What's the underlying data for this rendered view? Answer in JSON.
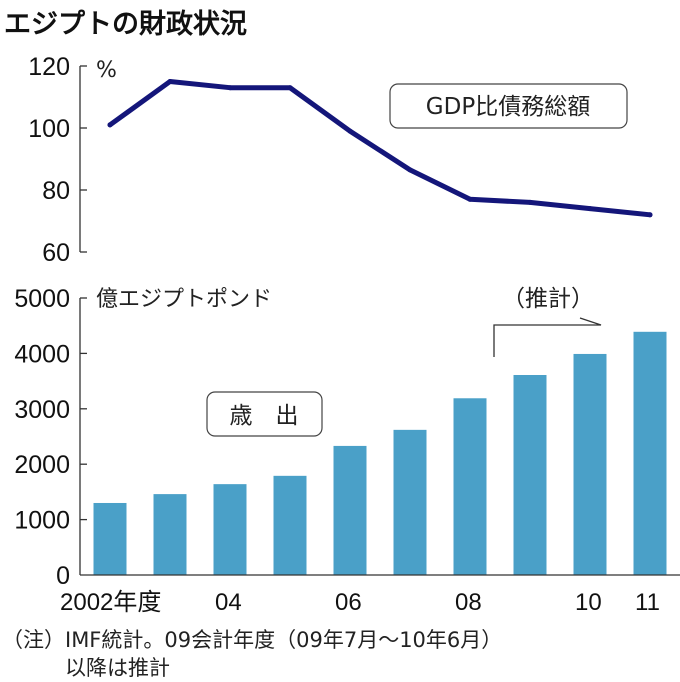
{
  "title": "エジプトの財政状況",
  "colors": {
    "line": "#14167a",
    "bar": "#4aa0c8",
    "axis": "#333333",
    "text": "#111111"
  },
  "chart_data": [
    {
      "type": "line",
      "title": "GDP比債務総額",
      "ylabel": "%",
      "xlabel": "",
      "ylim": [
        60,
        120
      ],
      "yticks": [
        "120",
        "100",
        "80",
        "60"
      ],
      "ytick_values": [
        120,
        100,
        80,
        60
      ],
      "grid": false,
      "x": [
        "2002",
        "2003",
        "2004",
        "2005",
        "2006",
        "2007",
        "2008",
        "2009",
        "2010",
        "2011"
      ],
      "series": [
        {
          "name": "GDP比債務総額",
          "values": [
            101,
            115,
            113,
            113,
            99,
            86.5,
            77,
            76,
            74,
            72
          ]
        }
      ]
    },
    {
      "type": "bar",
      "title": "歳　出",
      "ylabel": "億エジプトポンド",
      "xlabel": "",
      "ylim": [
        0,
        5000
      ],
      "yticks": [
        "5000",
        "4000",
        "3000",
        "2000",
        "1000",
        "0"
      ],
      "ytick_values": [
        5000,
        4000,
        3000,
        2000,
        1000,
        0
      ],
      "grid": false,
      "categories": [
        "2002",
        "2003",
        "2004",
        "2005",
        "2006",
        "2007",
        "2008",
        "2009",
        "2010",
        "2011"
      ],
      "x_tick_labels": [
        {
          "index": 0,
          "label": "2002年度"
        },
        {
          "index": 2,
          "label": "04"
        },
        {
          "index": 4,
          "label": "06"
        },
        {
          "index": 6,
          "label": "08"
        },
        {
          "index": 8,
          "label": "10"
        },
        {
          "index": 9,
          "label": "11"
        }
      ],
      "values": [
        1300,
        1460,
        1640,
        1790,
        2330,
        2620,
        3190,
        3610,
        3990,
        4390
      ],
      "annotations": [
        {
          "text": "（推計）",
          "applies_from_index": 7,
          "note": "estimate bracket arrow"
        }
      ]
    }
  ],
  "notes": {
    "line1": "（注）IMF統計。09会計年度（09年7月～10年6月）",
    "line2": "　　　以降は推計"
  }
}
